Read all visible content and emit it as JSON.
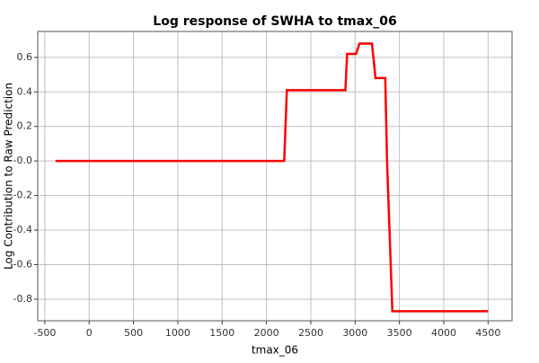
{
  "chart_data": {
    "type": "line",
    "title": "Log response of SWHA to tmax_06",
    "x_label": "tmax_06",
    "y_label": "Log Contribution to Raw Prediction",
    "x": [
      -380,
      2200,
      2230,
      2890,
      2910,
      3010,
      3050,
      3190,
      3230,
      3340,
      3360,
      3420,
      4500
    ],
    "series": [
      {
        "name": "SWHA",
        "color": "#ff0000",
        "values": [
          0,
          0,
          0.41,
          0.41,
          0.62,
          0.62,
          0.68,
          0.68,
          0.48,
          0.48,
          0,
          -0.87,
          -0.87
        ]
      }
    ],
    "xlim": [
      -580,
      4770
    ],
    "ylim": [
      -0.925,
      0.75
    ],
    "xticks": [
      -500,
      0,
      500,
      1000,
      1500,
      2000,
      2500,
      3000,
      3500,
      4000,
      4500
    ],
    "yticks": [
      0.6,
      0.4,
      0.2,
      {
        "value": 0,
        "label": "-0.0"
      },
      -0.2,
      -0.4,
      -0.6,
      -0.8
    ],
    "grid": true
  }
}
